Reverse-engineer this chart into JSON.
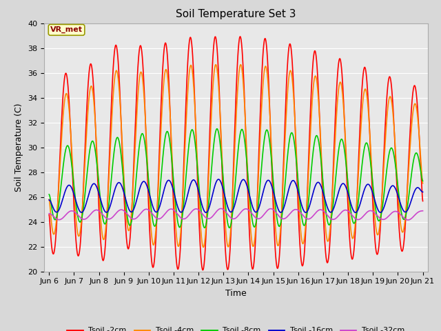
{
  "title": "Soil Temperature Set 3",
  "xlabel": "Time",
  "ylabel": "Soil Temperature (C)",
  "ylim": [
    20,
    40
  ],
  "yticks": [
    20,
    22,
    24,
    26,
    28,
    30,
    32,
    34,
    36,
    38,
    40
  ],
  "figure_bg_color": "#d8d8d8",
  "plot_bg_color": "#e8e8e8",
  "grid_color": "#ffffff",
  "annotation_text": "VR_met",
  "annotation_color": "#8B0000",
  "annotation_bg": "#ffffcc",
  "annotation_edge": "#999900",
  "line_colors": {
    "Tsoil -2cm": "#ff0000",
    "Tsoil -4cm": "#ff8800",
    "Tsoil -8cm": "#00cc00",
    "Tsoil -16cm": "#0000cc",
    "Tsoil -32cm": "#cc44cc"
  },
  "line_width": 1.2,
  "x_tick_labels": [
    "Jun 6",
    "Jun 7",
    "Jun 8",
    "Jun 9",
    "Jun 10",
    "Jun 11",
    "Jun 12",
    "Jun 13",
    "Jun 14",
    "Jun 15",
    "Jun 16",
    "Jun 17",
    "Jun 18",
    "Jun 19",
    "Jun 20",
    "Jun 21"
  ],
  "x_tick_positions": [
    6,
    7,
    8,
    9,
    10,
    11,
    12,
    13,
    14,
    15,
    16,
    17,
    18,
    19,
    20,
    21
  ],
  "xlim": [
    5.8,
    21.2
  ],
  "title_fontsize": 11,
  "label_fontsize": 9,
  "tick_fontsize": 8
}
